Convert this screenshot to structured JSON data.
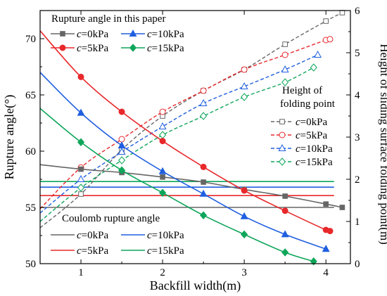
{
  "chart_data": {
    "type": "line",
    "xlabel": "Backfill width(m)",
    "ylabel_left": "Rupture angle(°)",
    "ylabel_right": "Height of sliding surface folding point(m)",
    "xlim": [
      0.5,
      4.3
    ],
    "ylim_left": [
      50,
      72.5
    ],
    "ylim_right": [
      0,
      6
    ],
    "x_ticks": [
      1,
      2,
      3,
      4
    ],
    "y_left_ticks": [
      50,
      55,
      60,
      65,
      70
    ],
    "y_right_ticks": [
      0,
      1,
      2,
      3,
      4,
      5,
      6
    ],
    "grid": false,
    "legends": {
      "rupture": {
        "title": "Rupture angle in this paper",
        "placement": "top-left"
      },
      "height": {
        "title": "Height of folding point",
        "placement": "right"
      },
      "coulomb": {
        "title": "Coulomb rupture angle",
        "placement": "bottom-left"
      }
    },
    "rupture_series": [
      {
        "name": "c=0kPa",
        "prefix": "c",
        "suffix": "=0kPa",
        "color": "#666666",
        "marker": "square",
        "x": [
          0.5,
          1.0,
          1.5,
          2.0,
          2.5,
          3.0,
          3.5,
          4.0,
          4.2
        ],
        "y": [
          58.8,
          58.4,
          58.1,
          57.7,
          57.25,
          56.6,
          56.0,
          55.3,
          55.0
        ]
      },
      {
        "name": "c=10kPa",
        "prefix": "c",
        "suffix": "=10kPa",
        "color": "#1f5fe0",
        "marker": "triangle",
        "x": [
          0.5,
          1.0,
          1.5,
          2.0,
          2.5,
          3.0,
          3.5,
          4.0
        ],
        "y": [
          67.0,
          63.4,
          60.5,
          58.2,
          56.2,
          54.2,
          52.6,
          51.3
        ]
      },
      {
        "name": "c=5kPa",
        "prefix": "c",
        "suffix": "=5kPa",
        "color": "#e8282b",
        "marker": "circle",
        "x": [
          0.5,
          1.0,
          1.5,
          2.0,
          2.5,
          3.0,
          3.5,
          4.0,
          4.05
        ],
        "y": [
          70.7,
          66.6,
          63.5,
          60.9,
          58.6,
          56.5,
          54.7,
          53.0,
          52.9
        ]
      },
      {
        "name": "c=15kPa",
        "prefix": "c",
        "suffix": "=15kPa",
        "color": "#0ea65a",
        "marker": "diamond",
        "x": [
          0.5,
          1.0,
          1.5,
          2.0,
          2.5,
          3.0,
          3.5,
          3.85
        ],
        "y": [
          63.8,
          60.8,
          58.3,
          56.3,
          54.3,
          52.6,
          51.0,
          50.2
        ]
      }
    ],
    "height_series": [
      {
        "name": "c=0kPa",
        "prefix": "c",
        "suffix": "=0kPa",
        "color": "#666666",
        "marker": "square",
        "x": [
          0.5,
          1.0,
          1.5,
          2.0,
          2.5,
          3.0,
          3.5,
          4.0,
          4.2
        ],
        "y": [
          0.85,
          1.65,
          2.7,
          3.5,
          4.1,
          4.6,
          5.2,
          5.75,
          5.95
        ]
      },
      {
        "name": "c=5kPa",
        "prefix": "c",
        "suffix": "=5kPa",
        "color": "#e8282b",
        "marker": "circle",
        "x": [
          0.5,
          1.0,
          1.5,
          2.0,
          2.5,
          3.0,
          3.5,
          4.0,
          4.05
        ],
        "y": [
          1.3,
          2.28,
          2.95,
          3.6,
          4.1,
          4.6,
          4.95,
          5.3,
          5.32
        ]
      },
      {
        "name": "c=10kPa",
        "prefix": "c",
        "suffix": "=10kPa",
        "color": "#1f5fe0",
        "marker": "triangle",
        "x": [
          0.5,
          1.0,
          1.5,
          2.0,
          2.5,
          3.0,
          3.5,
          3.9
        ],
        "y": [
          1.2,
          2.0,
          2.65,
          3.25,
          3.8,
          4.2,
          4.6,
          4.95
        ]
      },
      {
        "name": "c=15kPa",
        "prefix": "c",
        "suffix": "=15kPa",
        "color": "#0ea65a",
        "marker": "diamond",
        "x": [
          0.5,
          1.0,
          1.5,
          2.0,
          2.5,
          3.0,
          3.5,
          3.85
        ],
        "y": [
          1.0,
          1.8,
          2.45,
          3.05,
          3.5,
          3.95,
          4.3,
          4.65
        ]
      }
    ],
    "coulomb_series": [
      {
        "name": "c=0kPa",
        "prefix": "c",
        "suffix": "=0kPa",
        "color": "#666666",
        "x": [
          0.5,
          4.1
        ],
        "y": [
          55.0,
          55.0
        ]
      },
      {
        "name": "c=10kPa",
        "prefix": "c",
        "suffix": "=10kPa",
        "color": "#1f5fe0",
        "x": [
          0.5,
          4.1
        ],
        "y": [
          56.8,
          56.8
        ]
      },
      {
        "name": "c=5kPa",
        "prefix": "c",
        "suffix": "=5kPa",
        "color": "#e8282b",
        "x": [
          0.5,
          4.1
        ],
        "y": [
          56.05,
          56.05
        ]
      },
      {
        "name": "c=15kPa",
        "prefix": "c",
        "suffix": "=15kPa",
        "color": "#0ea65a",
        "x": [
          0.5,
          4.1
        ],
        "y": [
          57.3,
          57.3
        ]
      }
    ]
  }
}
